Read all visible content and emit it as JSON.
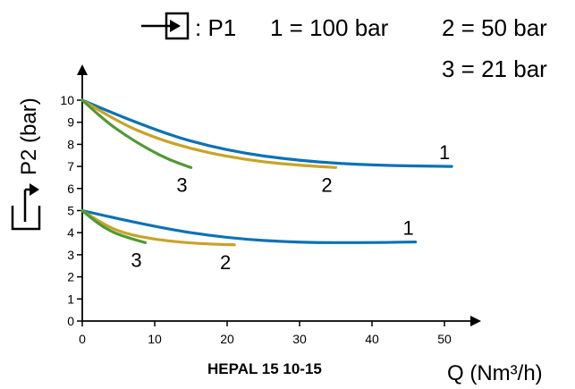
{
  "legend": {
    "lead": ": P1",
    "entries": [
      "1 = 100 bar",
      "2 = 50 bar",
      "3 = 21 bar"
    ]
  },
  "chart_data": {
    "type": "line",
    "title": "",
    "xlabel": "Q (Nm³/h)",
    "ylabel": "P2 (bar)",
    "model": "HEPAL 15 10-15",
    "xlim": [
      0,
      50
    ],
    "ylim": [
      0,
      10
    ],
    "xticks": [
      0,
      10,
      20,
      30,
      40,
      50
    ],
    "yticks": [
      0,
      1,
      2,
      3,
      4,
      5,
      6,
      7,
      8,
      9,
      10
    ],
    "grid": false,
    "series": [
      {
        "label": "1",
        "color": "#0b72b5",
        "x": [
          0,
          10,
          20,
          30,
          40,
          51
        ],
        "y": [
          10,
          8.6,
          7.7,
          7.25,
          7.05,
          7.0
        ]
      },
      {
        "label": "2",
        "color": "#c9a325",
        "x": [
          0,
          5,
          10,
          15,
          20,
          25,
          30,
          35
        ],
        "y": [
          10,
          9.0,
          8.3,
          7.8,
          7.45,
          7.2,
          7.05,
          6.95
        ]
      },
      {
        "label": "3",
        "color": "#4f9a36",
        "x": [
          0,
          3,
          6,
          9,
          12,
          15
        ],
        "y": [
          10,
          9.1,
          8.4,
          7.8,
          7.3,
          6.95
        ]
      },
      {
        "label": "1",
        "color": "#0b72b5",
        "x": [
          0,
          10,
          20,
          30,
          40,
          46
        ],
        "y": [
          5,
          4.25,
          3.75,
          3.55,
          3.55,
          3.58
        ]
      },
      {
        "label": "2",
        "color": "#c9a325",
        "x": [
          0,
          3,
          6,
          10,
          14,
          18,
          21
        ],
        "y": [
          5,
          4.35,
          3.95,
          3.7,
          3.55,
          3.48,
          3.45
        ]
      },
      {
        "label": "3",
        "color": "#4f9a36",
        "x": [
          0,
          2,
          4,
          6,
          8.7
        ],
        "y": [
          5,
          4.45,
          4.05,
          3.8,
          3.55
        ]
      }
    ]
  }
}
